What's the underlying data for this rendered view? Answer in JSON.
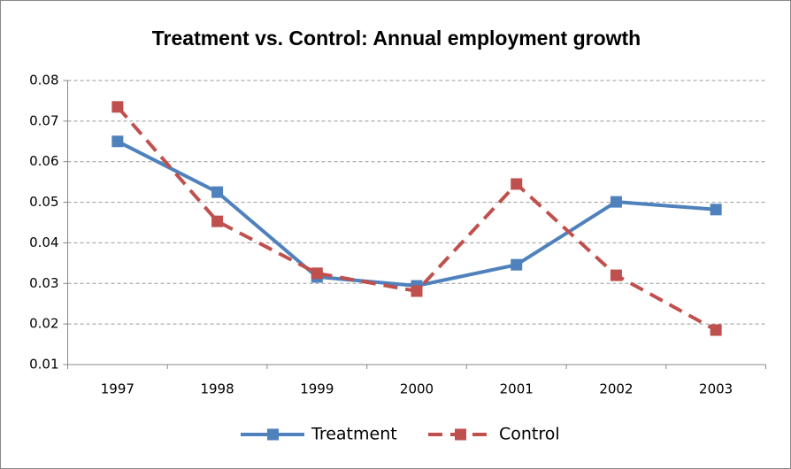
{
  "chart_data": {
    "type": "line",
    "title": "Treatment vs. Control: Annual employment growth",
    "categories": [
      "1997",
      "1998",
      "1999",
      "2000",
      "2001",
      "2002",
      "2003"
    ],
    "series": [
      {
        "name": "Treatment",
        "color": "#4f81bd",
        "dash": false,
        "values": [
          0.065,
          0.0525,
          0.0316,
          0.0294,
          0.0346,
          0.0501,
          0.0482
        ]
      },
      {
        "name": "Control",
        "color": "#c0504d",
        "dash": true,
        "values": [
          0.0735,
          0.0453,
          0.0325,
          0.0281,
          0.0545,
          0.032,
          0.0185
        ]
      }
    ],
    "ylim": [
      0.01,
      0.08
    ],
    "yticks": [
      0.01,
      0.02,
      0.03,
      0.04,
      0.05,
      0.06,
      0.07,
      0.08
    ],
    "grid": true,
    "legend": "bottom"
  }
}
